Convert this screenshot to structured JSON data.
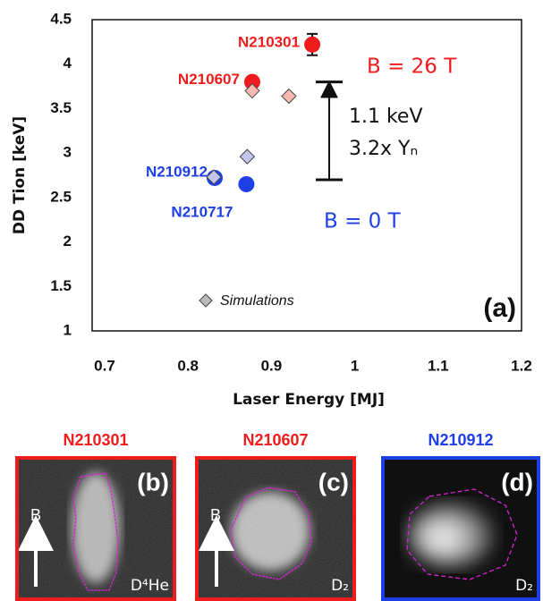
{
  "chart_data": {
    "type": "scatter",
    "x_label": "Laser Energy [MJ]",
    "y_label": "DD Tion [keV]",
    "xlim": [
      0.685,
      1.2
    ],
    "ylim": [
      1,
      4.5
    ],
    "xticks": [
      0.7,
      0.8,
      0.9,
      1,
      1.1,
      1.2
    ],
    "yticks": [
      1,
      1.5,
      2,
      2.5,
      3,
      3.5,
      4,
      4.5
    ],
    "series": [
      {
        "name": "N210301",
        "color": "#ee1c1c",
        "x": [
          0.949
        ],
        "values": [
          4.22
        ],
        "errors": [
          0.12
        ]
      },
      {
        "name": "N210607",
        "color": "#ee1c1c",
        "x": [
          0.877
        ],
        "values": [
          3.8
        ]
      },
      {
        "name": "N210912",
        "color": "#1f3fe6",
        "x": [
          0.832
        ],
        "values": [
          2.72
        ]
      },
      {
        "name": "N210717",
        "color": "#1f3fe6",
        "x": [
          0.87
        ],
        "values": [
          2.65
        ]
      },
      {
        "name": "Simulations",
        "color": "#bbbbbb",
        "marker": "diamond",
        "point_colors": [
          "#f6b9b2",
          "#f6b9b2",
          "#c3c5ec",
          "#c3c5ec"
        ],
        "x": [
          0.877,
          0.921,
          0.871,
          0.831
        ],
        "values": [
          3.7,
          3.64,
          2.96,
          2.73
        ]
      }
    ],
    "bracket": [
      2.7,
      3.8
    ],
    "annotations": [
      {
        "text": "B = 26 T",
        "color": "#ee1c1c"
      },
      {
        "text": "B = 0 T",
        "color": "#1f3fe6"
      },
      {
        "text": "1.1 keV",
        "color": "#111111"
      },
      {
        "text": "3.2x Yₙ",
        "color": "#111111"
      }
    ],
    "panel_label": "(a)"
  },
  "panels": [
    {
      "title": "N210301",
      "color": "#ee1c1c",
      "label": "(b)",
      "field": "B",
      "species": "D⁴He"
    },
    {
      "title": "N210607",
      "color": "#ee1c1c",
      "label": "(c)",
      "field": "B",
      "species": "D₂"
    },
    {
      "title": "N210912",
      "color": "#1f3fe6",
      "label": "(d)",
      "species": "D₂"
    }
  ]
}
